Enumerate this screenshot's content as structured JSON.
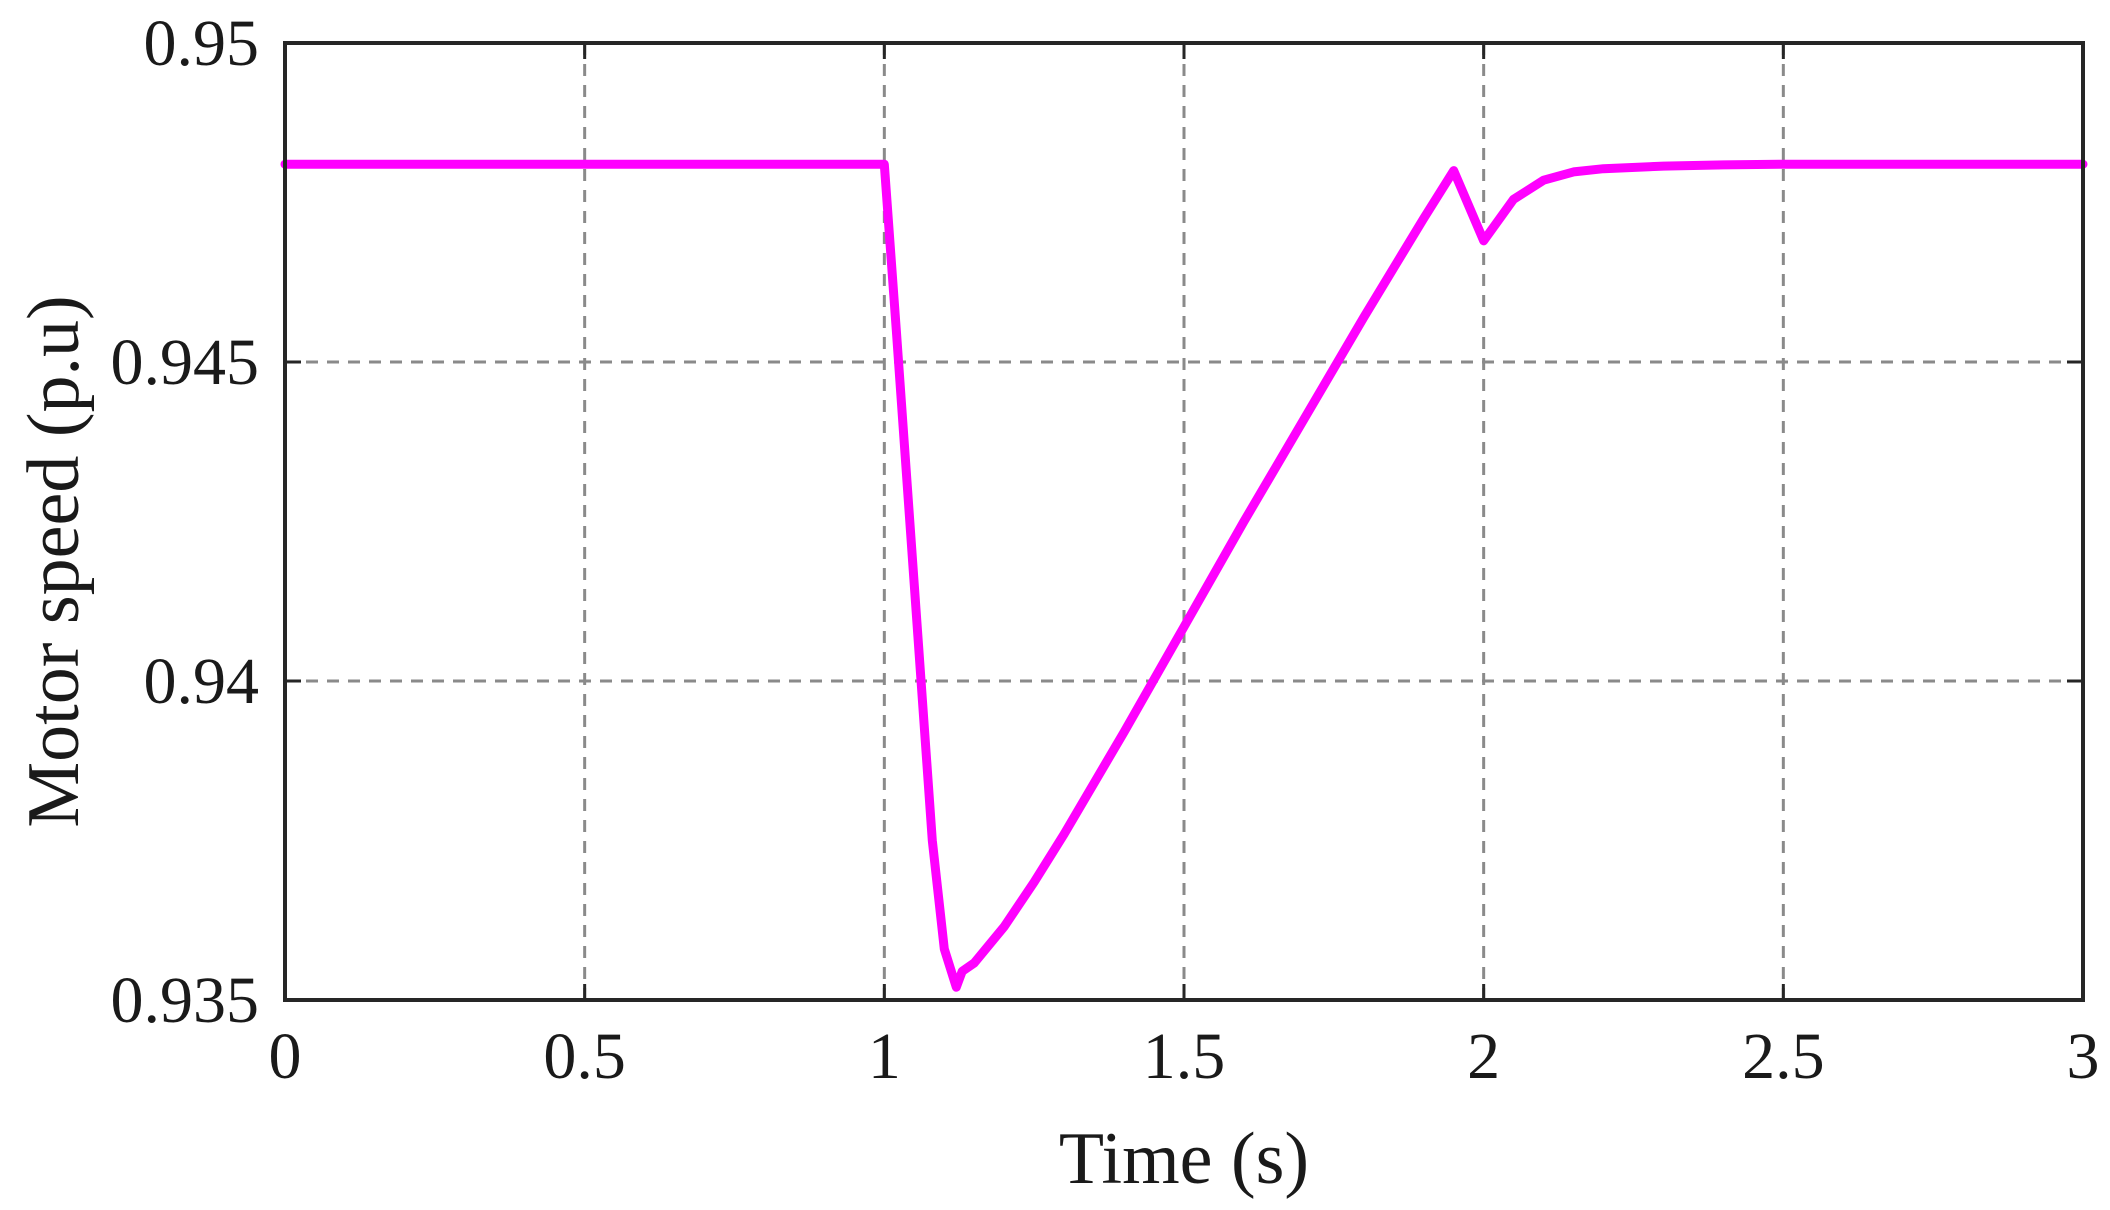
{
  "chart_data": {
    "type": "line",
    "title": "",
    "xlabel": "Time (s)",
    "ylabel": "Motor speed (p.u)",
    "xlim": [
      0,
      3
    ],
    "ylim": [
      0.935,
      0.95
    ],
    "xticks": [
      0,
      0.5,
      1,
      1.5,
      2,
      2.5,
      3
    ],
    "xtick_labels": [
      "0",
      "0.5",
      "1",
      "1.5",
      "2",
      "2.5",
      "3"
    ],
    "yticks": [
      0.935,
      0.94,
      0.945,
      0.95
    ],
    "ytick_labels": [
      "0.935",
      "0.94",
      "0.945",
      "0.95"
    ],
    "grid": true,
    "legend": "none",
    "series": [
      {
        "color": "#ff00ff",
        "x": [
          0,
          0.5,
          1.0,
          1.02,
          1.05,
          1.08,
          1.1,
          1.12,
          1.13,
          1.15,
          1.2,
          1.25,
          1.3,
          1.4,
          1.5,
          1.6,
          1.7,
          1.8,
          1.9,
          1.95,
          2.0,
          2.05,
          2.1,
          2.15,
          2.2,
          2.3,
          2.4,
          2.5,
          2.7,
          3.0
        ],
        "y": [
          0.9481,
          0.9481,
          0.9481,
          0.9455,
          0.9415,
          0.9375,
          0.9358,
          0.9352,
          0.93545,
          0.93558,
          0.93615,
          0.93685,
          0.9376,
          0.9392,
          0.94085,
          0.9425,
          0.9441,
          0.9457,
          0.94725,
          0.948,
          0.9469,
          0.94755,
          0.94785,
          0.94798,
          0.94803,
          0.94807,
          0.94809,
          0.9481,
          0.9481,
          0.9481
        ]
      }
    ]
  }
}
